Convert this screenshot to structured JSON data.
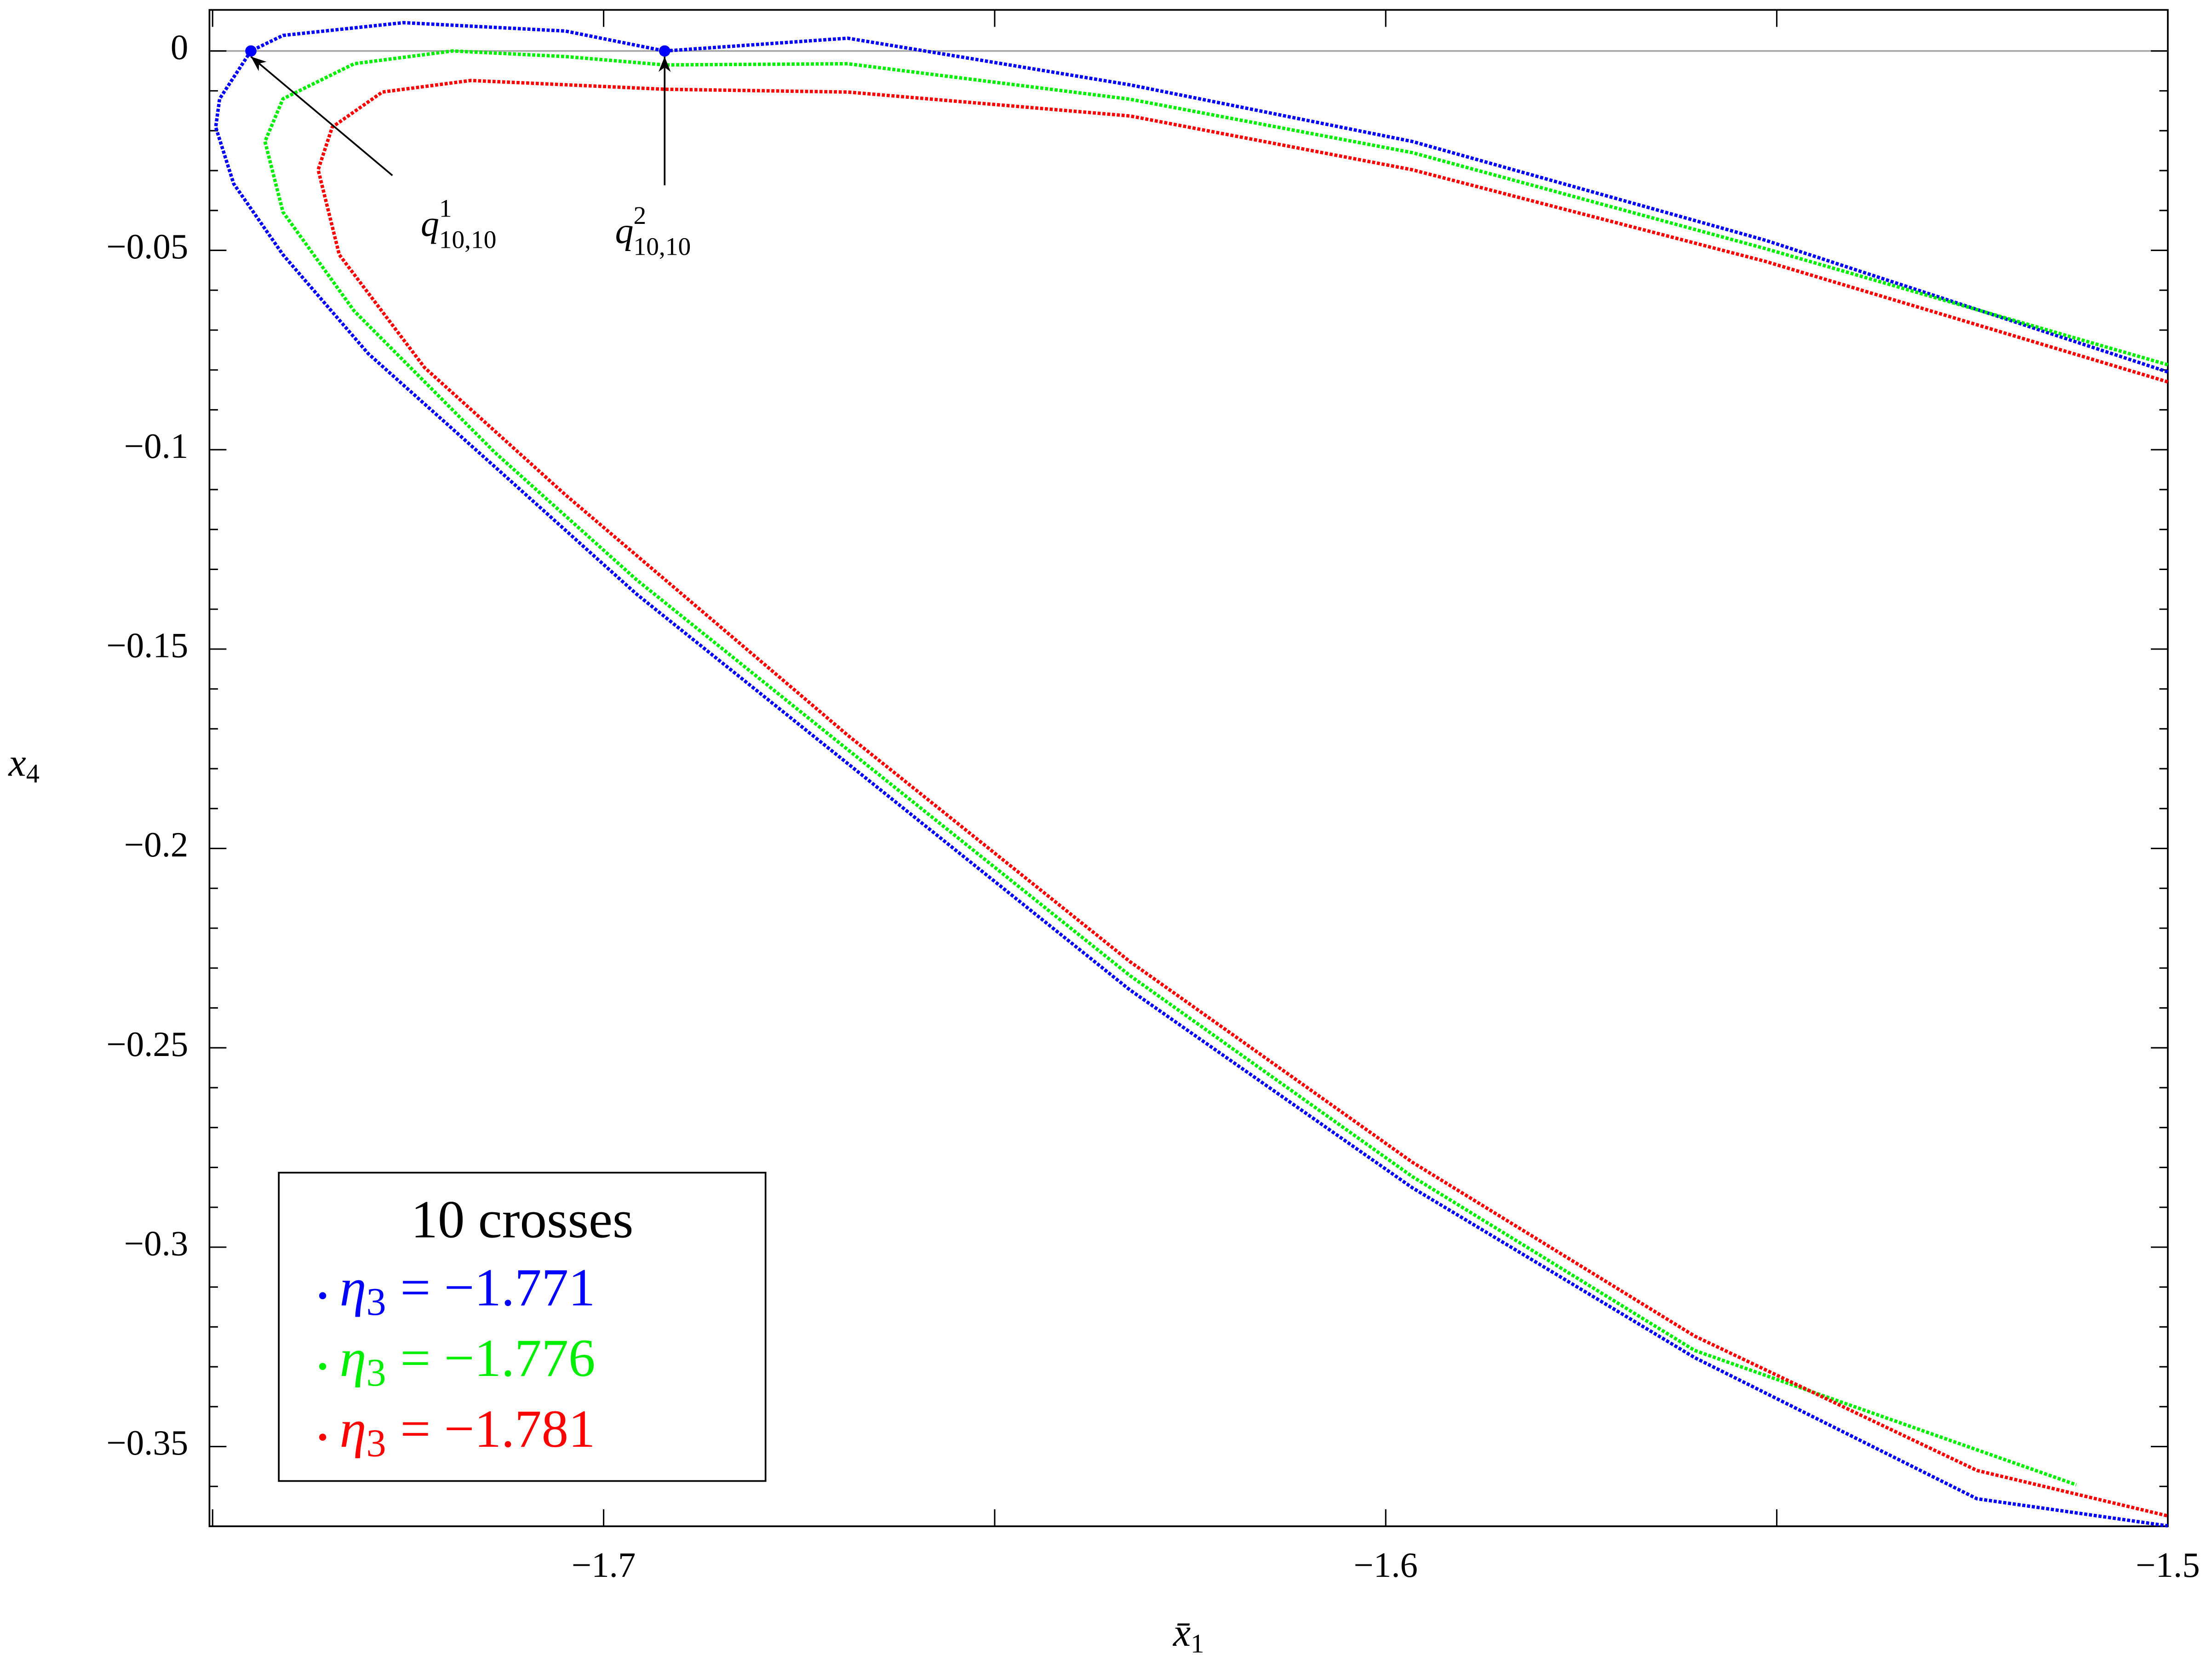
{
  "chart_data": {
    "type": "line",
    "xlabel": {
      "text": "x̄",
      "sub": "1"
    },
    "ylabel": {
      "text": "x",
      "sub": "4"
    },
    "xlim": [
      -1.7504,
      -1.5
    ],
    "ylim": [
      -0.37,
      0.0103
    ],
    "xticks": [
      {
        "value": -1.7,
        "label": "−1.7"
      },
      {
        "value": -1.6,
        "label": "−1.6"
      },
      {
        "value": -1.5,
        "label": "−1.5"
      }
    ],
    "xminor_ticks": [
      -1.75,
      -1.65,
      -1.55
    ],
    "yticks": [
      0,
      {
        "value": -0.05,
        "label": "−0.05"
      },
      {
        "value": -0.1,
        "label": "−0.1"
      },
      {
        "value": -0.15,
        "label": "−0.15"
      },
      {
        "value": -0.2,
        "label": "−0.2"
      },
      {
        "value": -0.25,
        "label": "−0.25"
      },
      {
        "value": -0.3,
        "label": "−0.3"
      },
      {
        "value": -0.35,
        "label": "−0.35"
      }
    ],
    "yminor_ticks": [
      -0.01,
      -0.02,
      -0.03,
      -0.04,
      -0.06,
      -0.07,
      -0.08,
      -0.09,
      -0.11,
      -0.12,
      -0.13,
      -0.14,
      -0.16,
      -0.17,
      -0.18,
      -0.19,
      -0.21,
      -0.22,
      -0.23,
      -0.24,
      -0.26,
      -0.27,
      -0.28,
      -0.29,
      -0.31,
      -0.32,
      -0.33,
      -0.34,
      -0.36
    ],
    "hline": 0,
    "legend_title": "10 crosses",
    "legend_position": "lower left",
    "series": [
      {
        "name": {
          "symbol": "η",
          "sub": "3",
          "text": "= −1.771"
        },
        "color": "#0000ff",
        "x": [
          -1.5,
          -1.5514,
          -1.5966,
          -1.6327,
          -1.6688,
          -1.6922,
          -1.7049,
          -1.7256,
          -1.741,
          -1.7451,
          -1.7491,
          -1.7496,
          -1.7473,
          -1.741,
          -1.7301,
          -1.7139,
          -1.6958,
          -1.6688,
          -1.6327,
          -1.5966,
          -1.5605,
          -1.5244,
          -1.5
        ],
        "values": [
          -0.0805,
          -0.0475,
          -0.0227,
          -0.0085,
          0.0032,
          0,
          0.005,
          0.0071,
          0.0039,
          0,
          -0.012,
          -0.0191,
          -0.0333,
          -0.0511,
          -0.0759,
          -0.1043,
          -0.1362,
          -0.1787,
          -0.2355,
          -0.2851,
          -0.3277,
          -0.3631,
          -0.3699
        ]
      },
      {
        "name": {
          "symbol": "η",
          "sub": "3",
          "text": "= −1.776"
        },
        "color": "#00ee00",
        "x": [
          -1.5,
          -1.5514,
          -1.5966,
          -1.6327,
          -1.6688,
          -1.6922,
          -1.7049,
          -1.7193,
          -1.7319,
          -1.741,
          -1.7433,
          -1.741,
          -1.7319,
          -1.7139,
          -1.6958,
          -1.6688,
          -1.6327,
          -1.5966,
          -1.5605,
          -1.5117
        ],
        "values": [
          -0.0787,
          -0.0496,
          -0.0255,
          -0.0121,
          -0.0032,
          -0.0035,
          -0.0014,
          0,
          -0.0032,
          -0.012,
          -0.0227,
          -0.0404,
          -0.0652,
          -0.1007,
          -0.1326,
          -0.1752,
          -0.2319,
          -0.2823,
          -0.3259,
          -0.3596
        ]
      },
      {
        "name": {
          "symbol": "η",
          "sub": "3",
          "text": "= −1.781"
        },
        "color": "#ff0000",
        "x": [
          -1.5,
          -1.5514,
          -1.5966,
          -1.6327,
          -1.6688,
          -1.6922,
          -1.717,
          -1.7283,
          -1.7347,
          -1.7365,
          -1.7338,
          -1.7229,
          -1.7049,
          -1.6688,
          -1.6327,
          -1.5966,
          -1.5605,
          -1.5244,
          -1.5
        ],
        "values": [
          -0.083,
          -0.0528,
          -0.0298,
          -0.0163,
          -0.0103,
          -0.0096,
          -0.0074,
          -0.0103,
          -0.0191,
          -0.0298,
          -0.0511,
          -0.0794,
          -0.1113,
          -0.1716,
          -0.2284,
          -0.2787,
          -0.3223,
          -0.356,
          -0.3674
        ]
      }
    ],
    "annotations": [
      {
        "text": "q",
        "sup": "1",
        "sub": "10,10",
        "x": -1.7451,
        "y": 0
      },
      {
        "text": "q",
        "sup": "2",
        "sub": "10,10",
        "x": -1.6922,
        "y": 0
      }
    ]
  }
}
